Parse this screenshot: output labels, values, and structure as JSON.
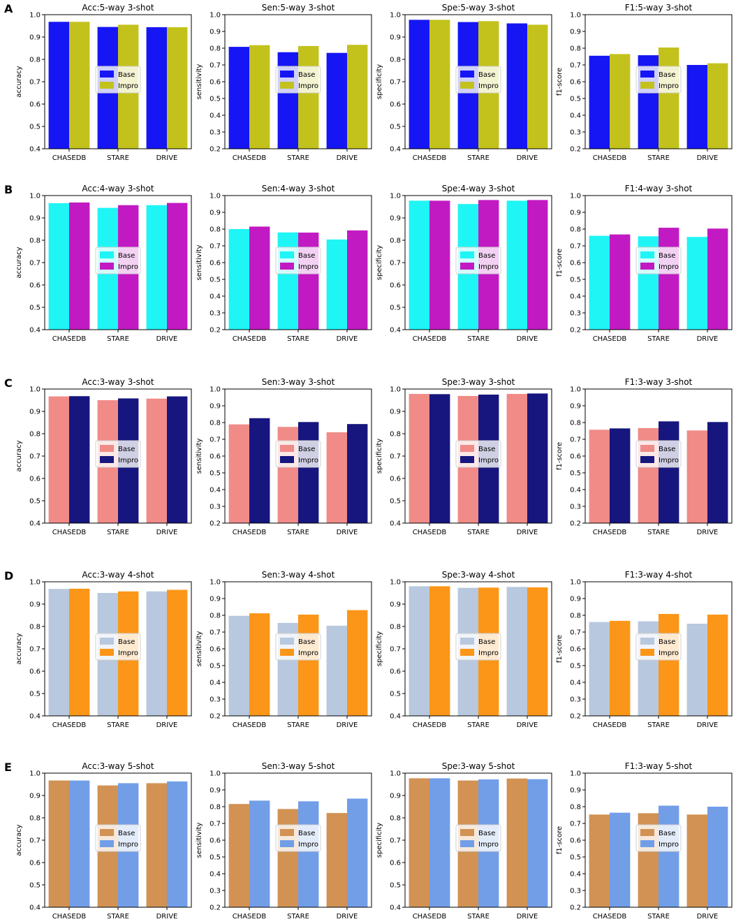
{
  "figure": {
    "categories": [
      "CHASEDB",
      "STARE",
      "DRIVE"
    ],
    "legend_labels": [
      "Base",
      "Impro"
    ],
    "tick_sets": {
      "acc": [
        "0.4",
        "0.5",
        "0.6",
        "0.7",
        "0.8",
        "0.9",
        "1.0"
      ],
      "other": [
        "0.2",
        "0.3",
        "0.4",
        "0.5",
        "0.6",
        "0.7",
        "0.8",
        "0.9",
        "1.0"
      ]
    }
  },
  "chart_data": [
    {
      "row": "A",
      "type": "bar",
      "title": "Acc:5-way 3-shot",
      "ylabel": "accuracy",
      "ylim": [
        0.4,
        1.0
      ],
      "ticks": "acc",
      "legend": "center",
      "categories": [
        "CHASEDB",
        "STARE",
        "DRIVE"
      ],
      "colors": [
        "#1616f5",
        "#c3c21d"
      ],
      "series": [
        {
          "name": "Base",
          "values": [
            0.968,
            0.945,
            0.944
          ]
        },
        {
          "name": "Impro",
          "values": [
            0.968,
            0.955,
            0.944
          ]
        }
      ]
    },
    {
      "row": "A",
      "type": "bar",
      "title": "Sen:5-way 3-shot",
      "ylabel": "sensitivity",
      "ylim": [
        0.2,
        1.0
      ],
      "ticks": "other",
      "legend": "center",
      "categories": [
        "CHASEDB",
        "STARE",
        "DRIVE"
      ],
      "colors": [
        "#1616f5",
        "#c3c21d"
      ],
      "series": [
        {
          "name": "Base",
          "values": [
            0.808,
            0.776,
            0.772
          ]
        },
        {
          "name": "Impro",
          "values": [
            0.818,
            0.813,
            0.82
          ]
        }
      ]
    },
    {
      "row": "A",
      "type": "bar",
      "title": "Spe:5-way 3-shot",
      "ylabel": "specificity",
      "ylim": [
        0.4,
        1.0
      ],
      "ticks": "acc",
      "legend": "center",
      "categories": [
        "CHASEDB",
        "STARE",
        "DRIVE"
      ],
      "colors": [
        "#1616f5",
        "#c3c21d"
      ],
      "series": [
        {
          "name": "Base",
          "values": [
            0.977,
            0.967,
            0.961
          ]
        },
        {
          "name": "Impro",
          "values": [
            0.977,
            0.971,
            0.955
          ]
        }
      ]
    },
    {
      "row": "A",
      "type": "bar",
      "title": "F1:5-way 3-shot",
      "ylabel": "f1-score",
      "ylim": [
        0.2,
        1.0
      ],
      "ticks": "other",
      "legend": "center",
      "categories": [
        "CHASEDB",
        "STARE",
        "DRIVE"
      ],
      "colors": [
        "#1616f5",
        "#c3c21d"
      ],
      "series": [
        {
          "name": "Base",
          "values": [
            0.755,
            0.758,
            0.7
          ]
        },
        {
          "name": "Impro",
          "values": [
            0.765,
            0.804,
            0.71
          ]
        }
      ]
    },
    {
      "row": "B",
      "type": "bar",
      "title": "Acc:4-way 3-shot",
      "ylabel": "accuracy",
      "ylim": [
        0.4,
        1.0
      ],
      "ticks": "acc",
      "legend": "center",
      "categories": [
        "CHASEDB",
        "STARE",
        "DRIVE"
      ],
      "colors": [
        "#1ff5f5",
        "#c21ac2"
      ],
      "series": [
        {
          "name": "Base",
          "values": [
            0.966,
            0.945,
            0.957
          ]
        },
        {
          "name": "Impro",
          "values": [
            0.969,
            0.957,
            0.967
          ]
        }
      ]
    },
    {
      "row": "B",
      "type": "bar",
      "title": "Sen:4-way 3-shot",
      "ylabel": "sensitivity",
      "ylim": [
        0.2,
        1.0
      ],
      "ticks": "other",
      "legend": "center",
      "categories": [
        "CHASEDB",
        "STARE",
        "DRIVE"
      ],
      "colors": [
        "#1ff5f5",
        "#c21ac2"
      ],
      "series": [
        {
          "name": "Base",
          "values": [
            0.8,
            0.78,
            0.738
          ]
        },
        {
          "name": "Impro",
          "values": [
            0.815,
            0.779,
            0.792
          ]
        }
      ]
    },
    {
      "row": "B",
      "type": "bar",
      "title": "Spe:4-way 3-shot",
      "ylabel": "specificity",
      "ylim": [
        0.4,
        1.0
      ],
      "ticks": "acc",
      "legend": "center",
      "categories": [
        "CHASEDB",
        "STARE",
        "DRIVE"
      ],
      "colors": [
        "#1ff5f5",
        "#c21ac2"
      ],
      "series": [
        {
          "name": "Base",
          "values": [
            0.977,
            0.962,
            0.977
          ]
        },
        {
          "name": "Impro",
          "values": [
            0.977,
            0.98,
            0.98
          ]
        }
      ]
    },
    {
      "row": "B",
      "type": "bar",
      "title": "F1:4-way 3-shot",
      "ylabel": "f1-score",
      "ylim": [
        0.2,
        1.0
      ],
      "ticks": "other",
      "legend": "center",
      "categories": [
        "CHASEDB",
        "STARE",
        "DRIVE"
      ],
      "colors": [
        "#1ff5f5",
        "#c21ac2"
      ],
      "series": [
        {
          "name": "Base",
          "values": [
            0.76,
            0.757,
            0.753
          ]
        },
        {
          "name": "Impro",
          "values": [
            0.768,
            0.808,
            0.803
          ]
        }
      ]
    },
    {
      "row": "C",
      "type": "bar",
      "title": "Acc:3-way 3-shot",
      "ylabel": "accuracy",
      "ylim": [
        0.4,
        1.0
      ],
      "ticks": "acc",
      "legend": "center",
      "categories": [
        "CHASEDB",
        "STARE",
        "DRIVE"
      ],
      "colors": [
        "#f08b88",
        "#16167e"
      ],
      "series": [
        {
          "name": "Base",
          "values": [
            0.967,
            0.95,
            0.957
          ]
        },
        {
          "name": "Impro",
          "values": [
            0.968,
            0.958,
            0.967
          ]
        }
      ]
    },
    {
      "row": "C",
      "type": "bar",
      "title": "Sen:3-way 3-shot",
      "ylabel": "sensitivity",
      "ylim": [
        0.2,
        1.0
      ],
      "ticks": "other",
      "legend": "center",
      "categories": [
        "CHASEDB",
        "STARE",
        "DRIVE"
      ],
      "colors": [
        "#f08b88",
        "#16167e"
      ],
      "series": [
        {
          "name": "Base",
          "values": [
            0.789,
            0.774,
            0.742
          ]
        },
        {
          "name": "Impro",
          "values": [
            0.826,
            0.803,
            0.791
          ]
        }
      ]
    },
    {
      "row": "C",
      "type": "bar",
      "title": "Spe:3-way 3-shot",
      "ylabel": "specificity",
      "ylim": [
        0.4,
        1.0
      ],
      "ticks": "acc",
      "legend": "center",
      "categories": [
        "CHASEDB",
        "STARE",
        "DRIVE"
      ],
      "colors": [
        "#f08b88",
        "#16167e"
      ],
      "series": [
        {
          "name": "Base",
          "values": [
            0.978,
            0.969,
            0.978
          ]
        },
        {
          "name": "Impro",
          "values": [
            0.977,
            0.975,
            0.98
          ]
        }
      ]
    },
    {
      "row": "C",
      "type": "bar",
      "title": "F1:3-way 3-shot",
      "ylabel": "f1-score",
      "ylim": [
        0.2,
        1.0
      ],
      "ticks": "other",
      "legend": "center",
      "categories": [
        "CHASEDB",
        "STARE",
        "DRIVE"
      ],
      "colors": [
        "#f08b88",
        "#16167e"
      ],
      "series": [
        {
          "name": "Base",
          "values": [
            0.757,
            0.767,
            0.753
          ]
        },
        {
          "name": "Impro",
          "values": [
            0.765,
            0.807,
            0.803
          ]
        }
      ]
    },
    {
      "row": "D",
      "type": "bar",
      "title": "Acc:3-way 4-shot",
      "ylabel": "accuracy",
      "ylim": [
        0.4,
        1.0
      ],
      "ticks": "acc",
      "legend": "center",
      "categories": [
        "CHASEDB",
        "STARE",
        "DRIVE"
      ],
      "colors": [
        "#b8c8de",
        "#fb9618"
      ],
      "series": [
        {
          "name": "Base",
          "values": [
            0.968,
            0.95,
            0.957
          ]
        },
        {
          "name": "Impro",
          "values": [
            0.969,
            0.957,
            0.964
          ]
        }
      ]
    },
    {
      "row": "D",
      "type": "bar",
      "title": "Sen:3-way 4-shot",
      "ylabel": "sensitivity",
      "ylim": [
        0.2,
        1.0
      ],
      "ticks": "other",
      "legend": "center",
      "categories": [
        "CHASEDB",
        "STARE",
        "DRIVE"
      ],
      "colors": [
        "#b8c8de",
        "#fb9618"
      ],
      "series": [
        {
          "name": "Base",
          "values": [
            0.797,
            0.755,
            0.738
          ]
        },
        {
          "name": "Impro",
          "values": [
            0.812,
            0.804,
            0.831
          ]
        }
      ]
    },
    {
      "row": "D",
      "type": "bar",
      "title": "Spe:3-way 4-shot",
      "ylabel": "specificity",
      "ylim": [
        0.4,
        1.0
      ],
      "ticks": "acc",
      "legend": "center",
      "categories": [
        "CHASEDB",
        "STARE",
        "DRIVE"
      ],
      "colors": [
        "#b8c8de",
        "#fb9618"
      ],
      "series": [
        {
          "name": "Base",
          "values": [
            0.98,
            0.973,
            0.977
          ]
        },
        {
          "name": "Impro",
          "values": [
            0.98,
            0.974,
            0.975
          ]
        }
      ]
    },
    {
      "row": "D",
      "type": "bar",
      "title": "F1:3-way 4-shot",
      "ylabel": "f1-score",
      "ylim": [
        0.2,
        1.0
      ],
      "ticks": "other",
      "legend": "center",
      "categories": [
        "CHASEDB",
        "STARE",
        "DRIVE"
      ],
      "colors": [
        "#b8c8de",
        "#fb9618"
      ],
      "series": [
        {
          "name": "Base",
          "values": [
            0.76,
            0.764,
            0.75
          ]
        },
        {
          "name": "Impro",
          "values": [
            0.767,
            0.808,
            0.804
          ]
        }
      ]
    },
    {
      "row": "E",
      "type": "bar",
      "title": "Acc:3-way 5-shot",
      "ylabel": "accuracy",
      "ylim": [
        0.4,
        1.0
      ],
      "ticks": "acc",
      "legend": "center",
      "categories": [
        "CHASEDB",
        "STARE",
        "DRIVE"
      ],
      "colors": [
        "#d29253",
        "#729ee8"
      ],
      "series": [
        {
          "name": "Base",
          "values": [
            0.967,
            0.945,
            0.955
          ]
        },
        {
          "name": "Impro",
          "values": [
            0.967,
            0.955,
            0.963
          ]
        }
      ]
    },
    {
      "row": "E",
      "type": "bar",
      "title": "Sen:3-way 5-shot",
      "ylabel": "sensitivity",
      "ylim": [
        0.2,
        1.0
      ],
      "ticks": "other",
      "legend": "center",
      "categories": [
        "CHASEDB",
        "STARE",
        "DRIVE"
      ],
      "colors": [
        "#d29253",
        "#729ee8"
      ],
      "series": [
        {
          "name": "Base",
          "values": [
            0.816,
            0.786,
            0.762
          ]
        },
        {
          "name": "Impro",
          "values": [
            0.836,
            0.832,
            0.848
          ]
        }
      ]
    },
    {
      "row": "E",
      "type": "bar",
      "title": "Spe:3-way 5-shot",
      "ylabel": "specificity",
      "ylim": [
        0.4,
        1.0
      ],
      "ticks": "acc",
      "legend": "center",
      "categories": [
        "CHASEDB",
        "STARE",
        "DRIVE"
      ],
      "colors": [
        "#d29253",
        "#729ee8"
      ],
      "series": [
        {
          "name": "Base",
          "values": [
            0.977,
            0.967,
            0.976
          ]
        },
        {
          "name": "Impro",
          "values": [
            0.977,
            0.972,
            0.973
          ]
        }
      ]
    },
    {
      "row": "E",
      "type": "bar",
      "title": "F1:3-way 5-shot",
      "ylabel": "f1-score",
      "ylim": [
        0.2,
        1.0
      ],
      "ticks": "other",
      "legend": "center",
      "categories": [
        "CHASEDB",
        "STARE",
        "DRIVE"
      ],
      "colors": [
        "#d29253",
        "#729ee8"
      ],
      "series": [
        {
          "name": "Base",
          "values": [
            0.753,
            0.761,
            0.753
          ]
        },
        {
          "name": "Impro",
          "values": [
            0.764,
            0.806,
            0.8
          ]
        }
      ]
    }
  ],
  "rows": [
    "A",
    "B",
    "C",
    "D",
    "E"
  ]
}
